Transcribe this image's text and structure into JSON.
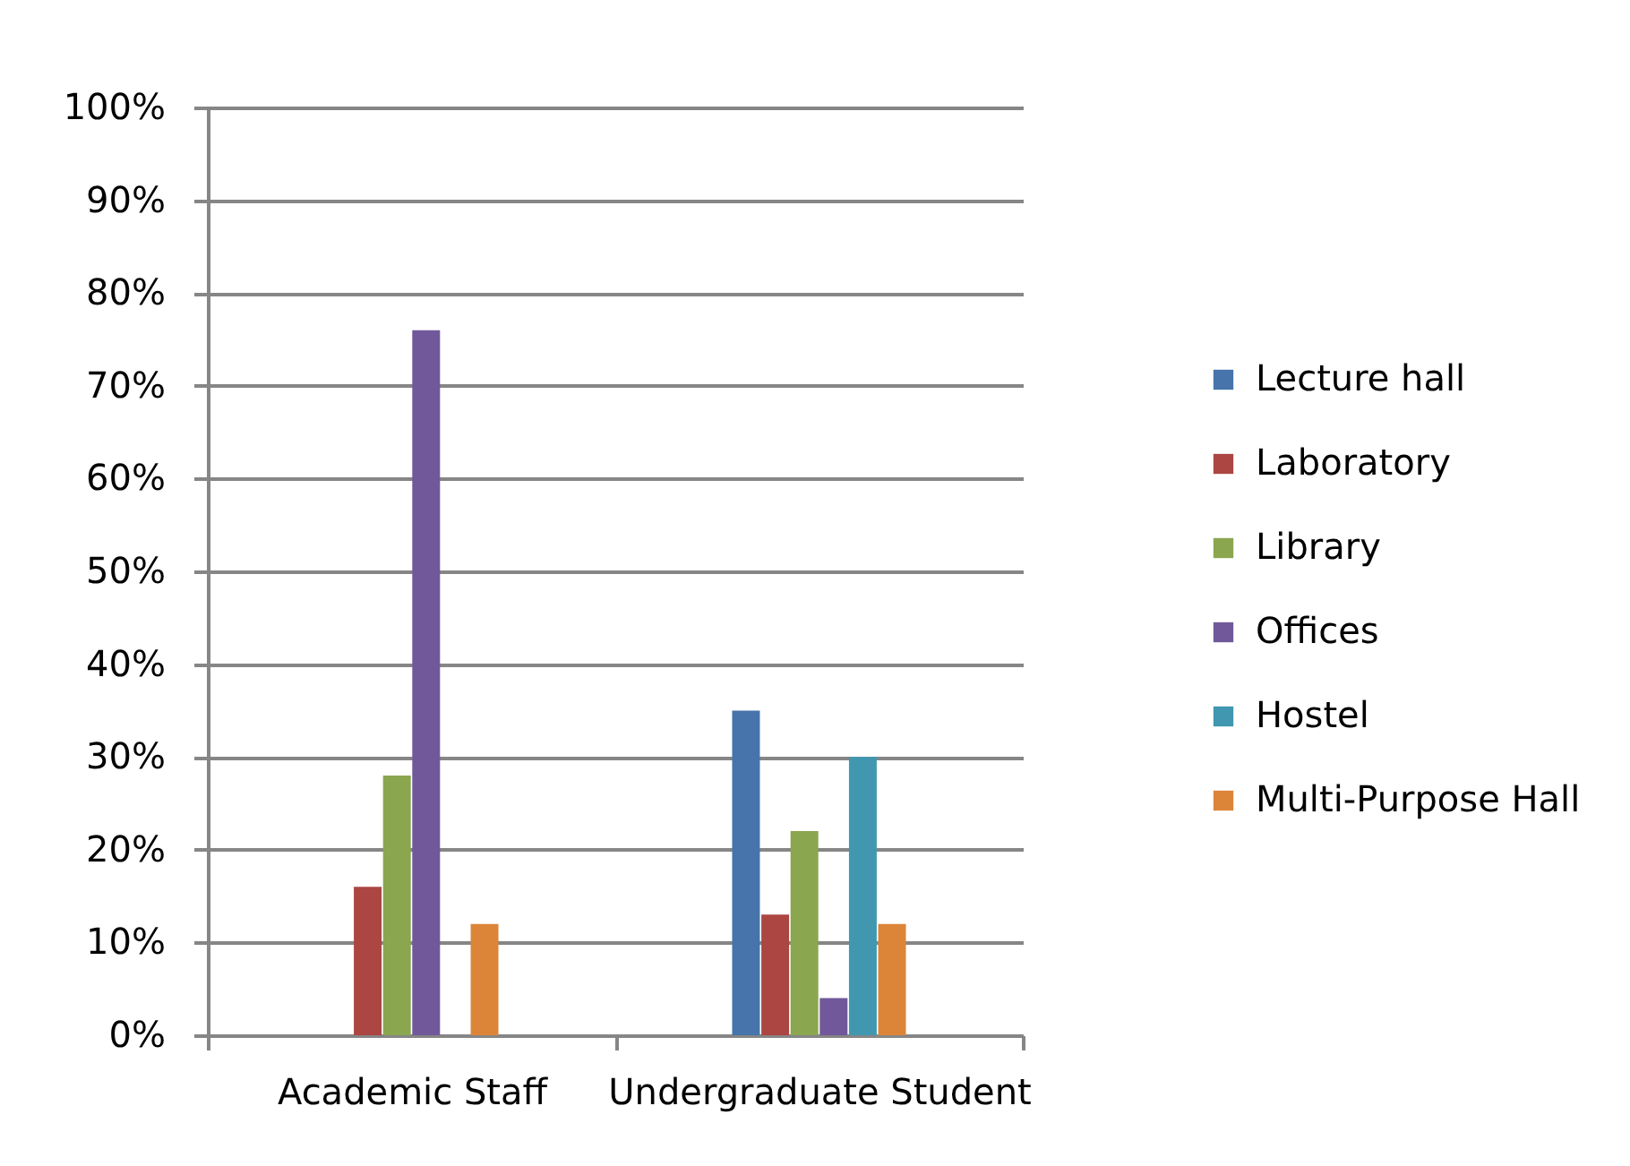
{
  "chart_data": {
    "type": "bar",
    "categories": [
      "Academic Staff",
      "Undergraduate Student"
    ],
    "series": [
      {
        "name": "Lecture hall",
        "color": "#4674ab",
        "values": [
          0,
          35
        ]
      },
      {
        "name": "Laboratory",
        "color": "#ab4643",
        "values": [
          16,
          13
        ]
      },
      {
        "name": "Library",
        "color": "#8aa64f",
        "values": [
          28,
          22
        ]
      },
      {
        "name": "Offices",
        "color": "#71589a",
        "values": [
          76,
          4
        ]
      },
      {
        "name": "Hostel",
        "color": "#4197b0",
        "values": [
          0,
          30
        ]
      },
      {
        "name": "Multi-Purpose Hall",
        "color": "#dc8539",
        "values": [
          12,
          12
        ]
      }
    ],
    "ylim": [
      0,
      100
    ],
    "yticks": [
      {
        "value": 0,
        "label": "0%"
      },
      {
        "value": 10,
        "label": "10%"
      },
      {
        "value": 20,
        "label": "20%"
      },
      {
        "value": 30,
        "label": "30%"
      },
      {
        "value": 40,
        "label": "40%"
      },
      {
        "value": 50,
        "label": "50%"
      },
      {
        "value": 60,
        "label": "60%"
      },
      {
        "value": 70,
        "label": "70%"
      },
      {
        "value": 80,
        "label": "80%"
      },
      {
        "value": 90,
        "label": "90%"
      },
      {
        "value": 100,
        "label": "100%"
      }
    ],
    "grid": "y",
    "legend": "right"
  }
}
